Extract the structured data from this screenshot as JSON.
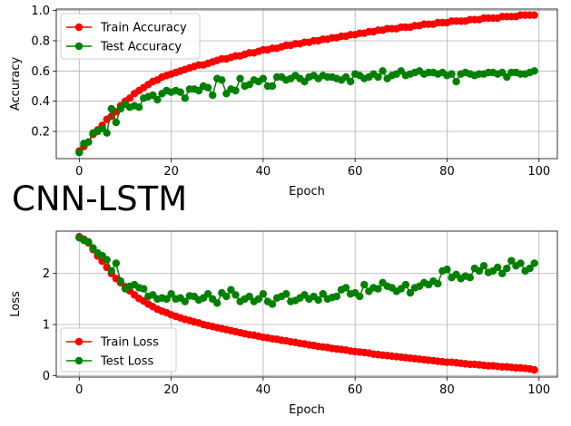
{
  "figure_title": "CNN-LSTM",
  "colors": {
    "train": "#ff0000",
    "test": "#008000",
    "grid": "#b0b0b0"
  },
  "chart_data": [
    {
      "type": "line",
      "xlabel": "Epoch",
      "ylabel": "Accuracy",
      "xlim": [
        -5,
        104
      ],
      "ylim": [
        0.02,
        1.01
      ],
      "xticks": [
        0,
        20,
        40,
        60,
        80,
        100
      ],
      "yticks": [
        0.2,
        0.4,
        0.6,
        0.8,
        1.0
      ],
      "ytick_labels": [
        "0.2",
        "0.4",
        "0.6",
        "0.8",
        "1.0"
      ],
      "grid": true,
      "legend": "top-left",
      "x": [
        0,
        1,
        2,
        3,
        4,
        5,
        6,
        7,
        8,
        9,
        10,
        11,
        12,
        13,
        14,
        15,
        16,
        17,
        18,
        19,
        20,
        21,
        22,
        23,
        24,
        25,
        26,
        27,
        28,
        29,
        30,
        31,
        32,
        33,
        34,
        35,
        36,
        37,
        38,
        39,
        40,
        41,
        42,
        43,
        44,
        45,
        46,
        47,
        48,
        49,
        50,
        51,
        52,
        53,
        54,
        55,
        56,
        57,
        58,
        59,
        60,
        61,
        62,
        63,
        64,
        65,
        66,
        67,
        68,
        69,
        70,
        71,
        72,
        73,
        74,
        75,
        76,
        77,
        78,
        79,
        80,
        81,
        82,
        83,
        84,
        85,
        86,
        87,
        88,
        89,
        90,
        91,
        92,
        93,
        94,
        95,
        96,
        97,
        98,
        99
      ],
      "series": [
        {
          "name": "Train Accuracy",
          "color": "#ff0000",
          "values": [
            0.07,
            0.1,
            0.13,
            0.18,
            0.21,
            0.24,
            0.28,
            0.3,
            0.33,
            0.37,
            0.4,
            0.42,
            0.45,
            0.47,
            0.49,
            0.51,
            0.53,
            0.54,
            0.56,
            0.57,
            0.58,
            0.59,
            0.6,
            0.61,
            0.62,
            0.63,
            0.64,
            0.64,
            0.65,
            0.66,
            0.67,
            0.68,
            0.68,
            0.69,
            0.7,
            0.7,
            0.71,
            0.72,
            0.72,
            0.73,
            0.74,
            0.74,
            0.75,
            0.75,
            0.76,
            0.77,
            0.77,
            0.78,
            0.78,
            0.79,
            0.79,
            0.8,
            0.8,
            0.81,
            0.81,
            0.82,
            0.82,
            0.83,
            0.83,
            0.84,
            0.84,
            0.85,
            0.85,
            0.86,
            0.86,
            0.87,
            0.87,
            0.88,
            0.88,
            0.88,
            0.89,
            0.89,
            0.89,
            0.9,
            0.9,
            0.91,
            0.91,
            0.91,
            0.92,
            0.92,
            0.92,
            0.93,
            0.93,
            0.93,
            0.93,
            0.94,
            0.94,
            0.94,
            0.95,
            0.95,
            0.95,
            0.95,
            0.96,
            0.96,
            0.96,
            0.96,
            0.97,
            0.97,
            0.97,
            0.97
          ]
        },
        {
          "name": "Test Accuracy",
          "color": "#008000",
          "values": [
            0.06,
            0.12,
            0.13,
            0.19,
            0.2,
            0.22,
            0.19,
            0.35,
            0.26,
            0.35,
            0.38,
            0.36,
            0.37,
            0.36,
            0.42,
            0.43,
            0.44,
            0.41,
            0.45,
            0.47,
            0.46,
            0.47,
            0.46,
            0.42,
            0.48,
            0.48,
            0.47,
            0.5,
            0.49,
            0.44,
            0.55,
            0.54,
            0.45,
            0.48,
            0.47,
            0.55,
            0.5,
            0.51,
            0.54,
            0.53,
            0.55,
            0.5,
            0.5,
            0.56,
            0.56,
            0.54,
            0.55,
            0.57,
            0.55,
            0.53,
            0.56,
            0.57,
            0.55,
            0.57,
            0.56,
            0.56,
            0.55,
            0.54,
            0.56,
            0.53,
            0.58,
            0.57,
            0.55,
            0.56,
            0.58,
            0.56,
            0.6,
            0.55,
            0.57,
            0.58,
            0.6,
            0.57,
            0.58,
            0.59,
            0.6,
            0.58,
            0.59,
            0.59,
            0.58,
            0.59,
            0.57,
            0.58,
            0.53,
            0.58,
            0.59,
            0.58,
            0.57,
            0.58,
            0.58,
            0.59,
            0.59,
            0.58,
            0.59,
            0.56,
            0.59,
            0.59,
            0.58,
            0.58,
            0.59,
            0.6
          ]
        }
      ]
    },
    {
      "type": "line",
      "xlabel": "Epoch",
      "ylabel": "Loss",
      "xlim": [
        -5,
        104
      ],
      "ylim": [
        -0.03,
        2.83
      ],
      "xticks": [
        0,
        20,
        40,
        60,
        80,
        100
      ],
      "yticks": [
        0,
        1,
        2
      ],
      "ytick_labels": [
        "0",
        "1",
        "2"
      ],
      "grid": true,
      "legend": "bottom-left",
      "x": [
        0,
        1,
        2,
        3,
        4,
        5,
        6,
        7,
        8,
        9,
        10,
        11,
        12,
        13,
        14,
        15,
        16,
        17,
        18,
        19,
        20,
        21,
        22,
        23,
        24,
        25,
        26,
        27,
        28,
        29,
        30,
        31,
        32,
        33,
        34,
        35,
        36,
        37,
        38,
        39,
        40,
        41,
        42,
        43,
        44,
        45,
        46,
        47,
        48,
        49,
        50,
        51,
        52,
        53,
        54,
        55,
        56,
        57,
        58,
        59,
        60,
        61,
        62,
        63,
        64,
        65,
        66,
        67,
        68,
        69,
        70,
        71,
        72,
        73,
        74,
        75,
        76,
        77,
        78,
        79,
        80,
        81,
        82,
        83,
        84,
        85,
        86,
        87,
        88,
        89,
        90,
        91,
        92,
        93,
        94,
        95,
        96,
        97,
        98,
        99
      ],
      "series": [
        {
          "name": "Train Loss",
          "color": "#ff0000",
          "values": [
            2.72,
            2.67,
            2.6,
            2.47,
            2.34,
            2.24,
            2.12,
            2.0,
            1.9,
            1.82,
            1.74,
            1.66,
            1.58,
            1.51,
            1.46,
            1.4,
            1.35,
            1.3,
            1.26,
            1.23,
            1.19,
            1.16,
            1.13,
            1.1,
            1.08,
            1.05,
            1.03,
            1.0,
            0.98,
            0.96,
            0.94,
            0.92,
            0.9,
            0.88,
            0.86,
            0.84,
            0.82,
            0.8,
            0.79,
            0.77,
            0.75,
            0.74,
            0.72,
            0.71,
            0.69,
            0.68,
            0.66,
            0.65,
            0.63,
            0.62,
            0.6,
            0.59,
            0.57,
            0.56,
            0.55,
            0.53,
            0.52,
            0.51,
            0.5,
            0.48,
            0.47,
            0.46,
            0.45,
            0.44,
            0.42,
            0.41,
            0.4,
            0.39,
            0.38,
            0.37,
            0.36,
            0.35,
            0.34,
            0.33,
            0.32,
            0.31,
            0.3,
            0.29,
            0.28,
            0.27,
            0.26,
            0.26,
            0.25,
            0.24,
            0.23,
            0.22,
            0.22,
            0.21,
            0.2,
            0.19,
            0.19,
            0.18,
            0.17,
            0.17,
            0.16,
            0.15,
            0.15,
            0.14,
            0.13,
            0.11
          ]
        },
        {
          "name": "Test Loss",
          "color": "#008000",
          "values": [
            2.7,
            2.65,
            2.62,
            2.5,
            2.4,
            2.35,
            2.27,
            2.05,
            2.2,
            1.85,
            1.7,
            1.75,
            1.78,
            1.72,
            1.7,
            1.55,
            1.58,
            1.5,
            1.52,
            1.5,
            1.6,
            1.5,
            1.52,
            1.45,
            1.56,
            1.55,
            1.48,
            1.52,
            1.6,
            1.5,
            1.42,
            1.62,
            1.55,
            1.68,
            1.58,
            1.45,
            1.5,
            1.55,
            1.45,
            1.5,
            1.6,
            1.45,
            1.4,
            1.52,
            1.55,
            1.6,
            1.45,
            1.47,
            1.52,
            1.58,
            1.5,
            1.55,
            1.48,
            1.6,
            1.5,
            1.53,
            1.55,
            1.68,
            1.72,
            1.6,
            1.62,
            1.55,
            1.78,
            1.65,
            1.72,
            1.7,
            1.82,
            1.75,
            1.72,
            1.65,
            1.7,
            1.78,
            1.62,
            1.72,
            1.75,
            1.82,
            1.78,
            1.85,
            1.8,
            2.05,
            2.08,
            1.92,
            1.98,
            1.9,
            1.95,
            1.92,
            2.1,
            2.05,
            2.15,
            2.02,
            2.05,
            2.12,
            2.0,
            2.1,
            2.25,
            2.15,
            2.2,
            2.05,
            2.1,
            2.2
          ]
        }
      ]
    }
  ]
}
